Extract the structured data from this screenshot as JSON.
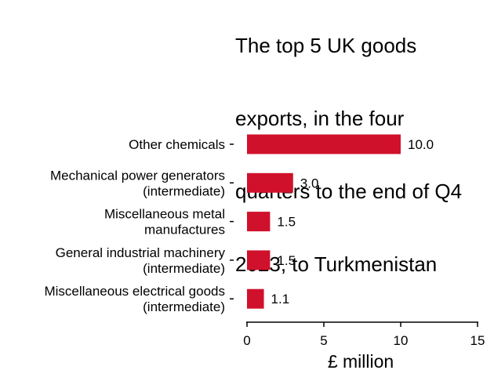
{
  "chart_data": {
    "type": "bar",
    "orientation": "horizontal",
    "title": "The top 5 UK goods exports, in the four quarters to the end of Q4 2023, to Turkmenistan",
    "title_lines": [
      "The top 5 UK goods",
      "exports, in the four",
      "quarters to the end of Q4",
      "2023, to Turkmenistan"
    ],
    "categories": [
      [
        "Other chemicals"
      ],
      [
        "Mechanical power generators",
        "(intermediate)"
      ],
      [
        "Miscellaneous metal",
        "manufactures"
      ],
      [
        "General industrial machinery",
        "(intermediate)"
      ],
      [
        "Miscellaneous electrical goods",
        "(intermediate)"
      ]
    ],
    "values": [
      10.0,
      3.0,
      1.5,
      1.5,
      1.1
    ],
    "value_labels": [
      "10.0",
      "3.0",
      "1.5",
      "1.5",
      "1.1"
    ],
    "xlabel": "£ million",
    "ylabel": "",
    "xlim": [
      0,
      15
    ],
    "xticks": [
      0,
      5,
      10,
      15
    ],
    "grid": false,
    "legend": "none",
    "bar_color": "#d0112b"
  }
}
